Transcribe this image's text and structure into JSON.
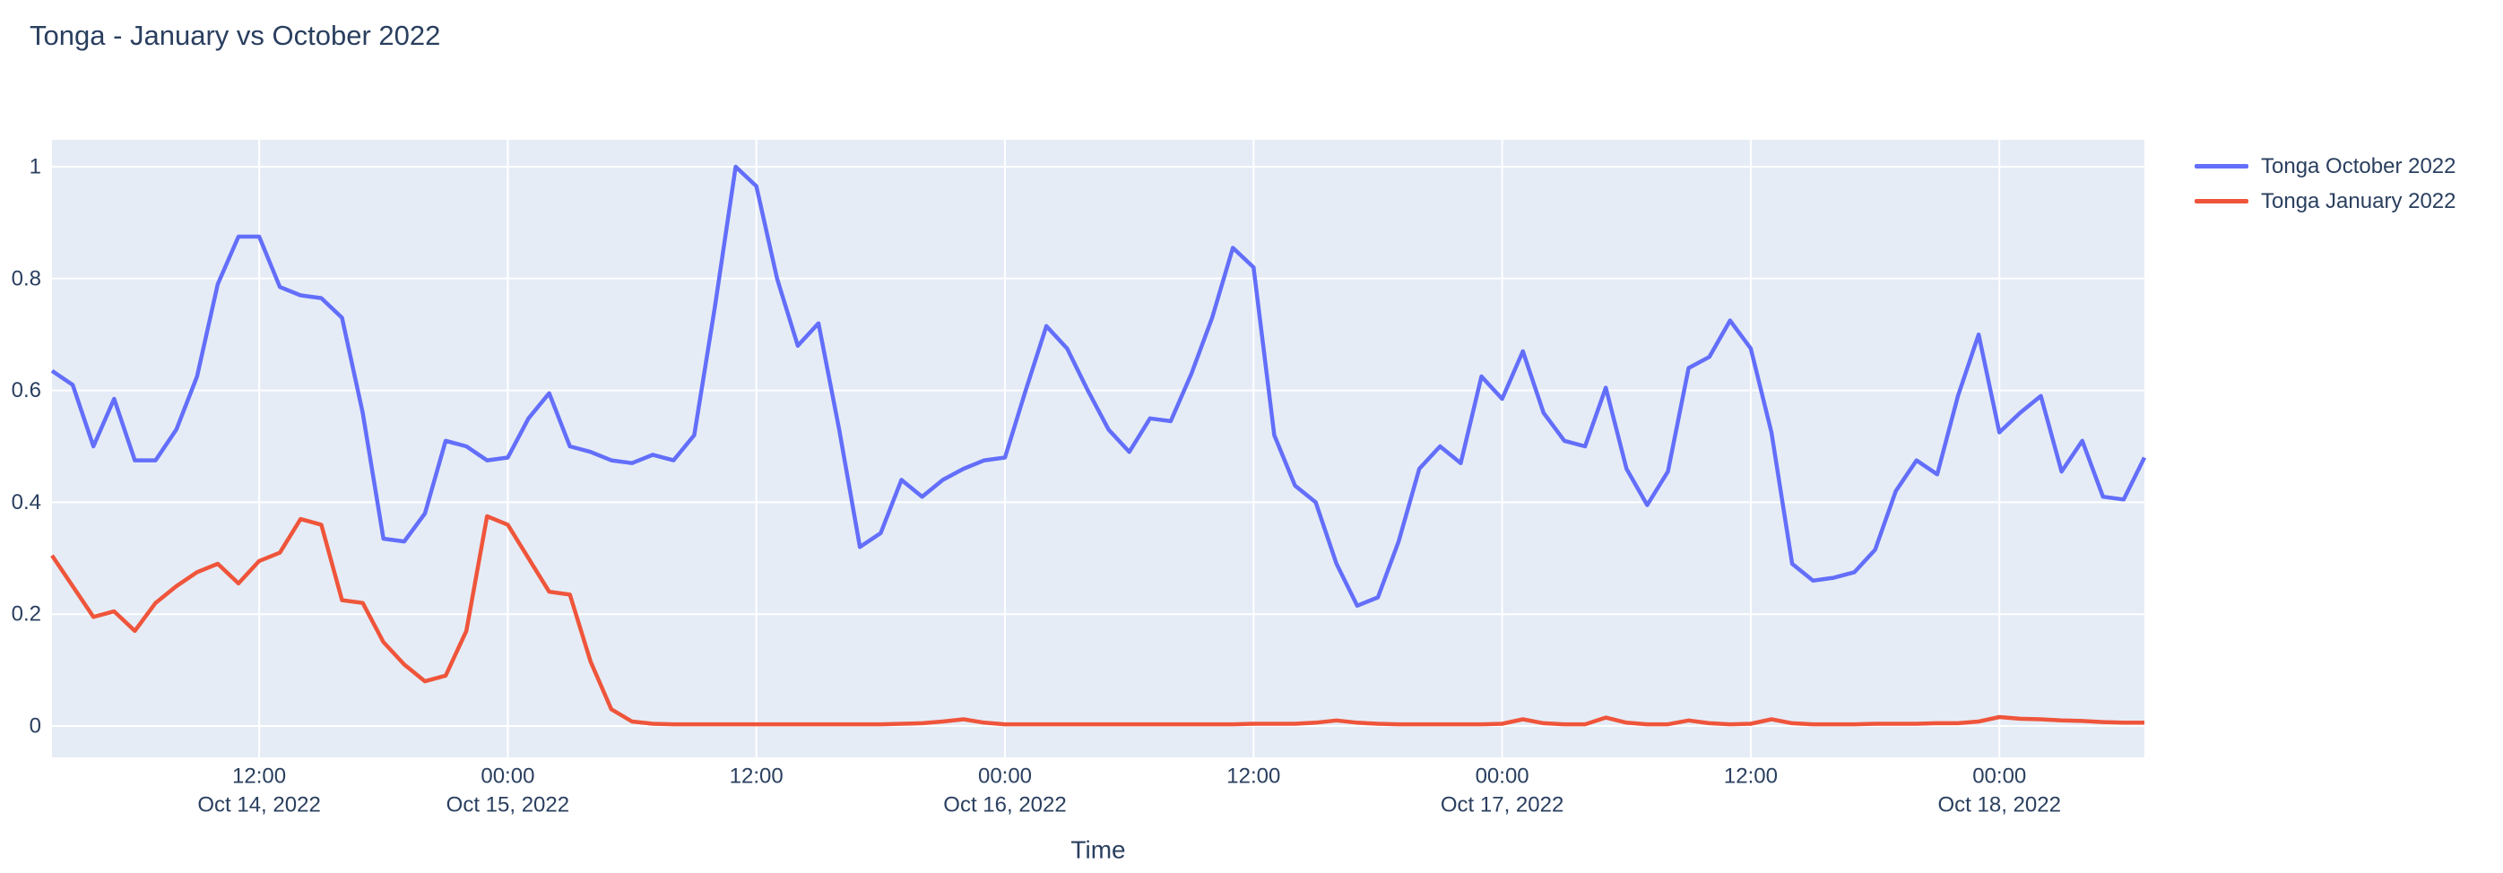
{
  "page": {
    "background_color": "#ffffff",
    "text_color": "#2a3f5f"
  },
  "chart_data": {
    "type": "line",
    "title": "Tonga - January vs October 2022",
    "xlabel": "Time",
    "ylabel": "",
    "legend_position": "right-top-outside",
    "grid": true,
    "style": {
      "plot_bgcolor": "#e5ecf6",
      "gridcolor": "#ffffff",
      "font_color": "#2a3f5f",
      "paper_bgcolor": "#ffffff"
    },
    "x_description": "hourly samples, index 0 = left edge (Oct 14 2022 ~02:00) to index 101 = right edge (Oct 18 2022 ~07:00)",
    "ylim": [
      -0.056,
      1.048
    ],
    "yticks": [
      0,
      0.2,
      0.4,
      0.6,
      0.8,
      1
    ],
    "xticks": [
      {
        "pos": 10,
        "time": "12:00",
        "date": "Oct 14, 2022"
      },
      {
        "pos": 22,
        "time": "00:00",
        "date": "Oct 15, 2022"
      },
      {
        "pos": 34,
        "time": "12:00",
        "date": ""
      },
      {
        "pos": 46,
        "time": "00:00",
        "date": "Oct 16, 2022"
      },
      {
        "pos": 58,
        "time": "12:00",
        "date": ""
      },
      {
        "pos": 70,
        "time": "00:00",
        "date": "Oct 17, 2022"
      },
      {
        "pos": 82,
        "time": "12:00",
        "date": ""
      },
      {
        "pos": 94,
        "time": "00:00",
        "date": "Oct 18, 2022"
      }
    ],
    "series": [
      {
        "name": "Tonga October 2022",
        "color": "#636efa",
        "values": [
          0.635,
          0.61,
          0.5,
          0.585,
          0.475,
          0.475,
          0.53,
          0.625,
          0.79,
          0.875,
          0.875,
          0.785,
          0.77,
          0.765,
          0.73,
          0.56,
          0.335,
          0.33,
          0.38,
          0.51,
          0.5,
          0.475,
          0.48,
          0.55,
          0.595,
          0.5,
          0.49,
          0.475,
          0.47,
          0.485,
          0.475,
          0.52,
          0.75,
          1.0,
          0.965,
          0.8,
          0.68,
          0.72,
          0.53,
          0.32,
          0.345,
          0.44,
          0.41,
          0.44,
          0.46,
          0.475,
          0.48,
          0.6,
          0.715,
          0.675,
          0.6,
          0.53,
          0.49,
          0.55,
          0.545,
          0.63,
          0.73,
          0.855,
          0.82,
          0.52,
          0.43,
          0.4,
          0.29,
          0.215,
          0.23,
          0.33,
          0.46,
          0.5,
          0.47,
          0.625,
          0.585,
          0.67,
          0.56,
          0.51,
          0.5,
          0.605,
          0.46,
          0.395,
          0.455,
          0.64,
          0.66,
          0.725,
          0.675,
          0.525,
          0.29,
          0.26,
          0.265,
          0.275,
          0.315,
          0.42,
          0.475,
          0.45,
          0.59,
          0.7,
          0.525,
          0.56,
          0.59,
          0.455,
          0.51,
          0.41,
          0.405,
          0.48
        ]
      },
      {
        "name": "Tonga January 2022",
        "color": "#ef553b",
        "values": [
          0.305,
          0.25,
          0.195,
          0.205,
          0.17,
          0.22,
          0.25,
          0.275,
          0.29,
          0.255,
          0.295,
          0.31,
          0.37,
          0.36,
          0.225,
          0.22,
          0.15,
          0.11,
          0.08,
          0.09,
          0.17,
          0.375,
          0.36,
          0.3,
          0.24,
          0.235,
          0.115,
          0.03,
          0.008,
          0.004,
          0.003,
          0.003,
          0.003,
          0.003,
          0.003,
          0.003,
          0.003,
          0.003,
          0.003,
          0.003,
          0.003,
          0.004,
          0.005,
          0.008,
          0.012,
          0.006,
          0.003,
          0.003,
          0.003,
          0.003,
          0.003,
          0.003,
          0.003,
          0.003,
          0.003,
          0.003,
          0.003,
          0.003,
          0.004,
          0.004,
          0.004,
          0.006,
          0.01,
          0.006,
          0.004,
          0.003,
          0.003,
          0.003,
          0.003,
          0.003,
          0.004,
          0.012,
          0.005,
          0.003,
          0.003,
          0.015,
          0.006,
          0.003,
          0.003,
          0.01,
          0.005,
          0.003,
          0.004,
          0.012,
          0.005,
          0.003,
          0.003,
          0.003,
          0.004,
          0.004,
          0.004,
          0.005,
          0.005,
          0.008,
          0.016,
          0.013,
          0.012,
          0.01,
          0.009,
          0.007,
          0.006,
          0.006
        ]
      }
    ]
  }
}
